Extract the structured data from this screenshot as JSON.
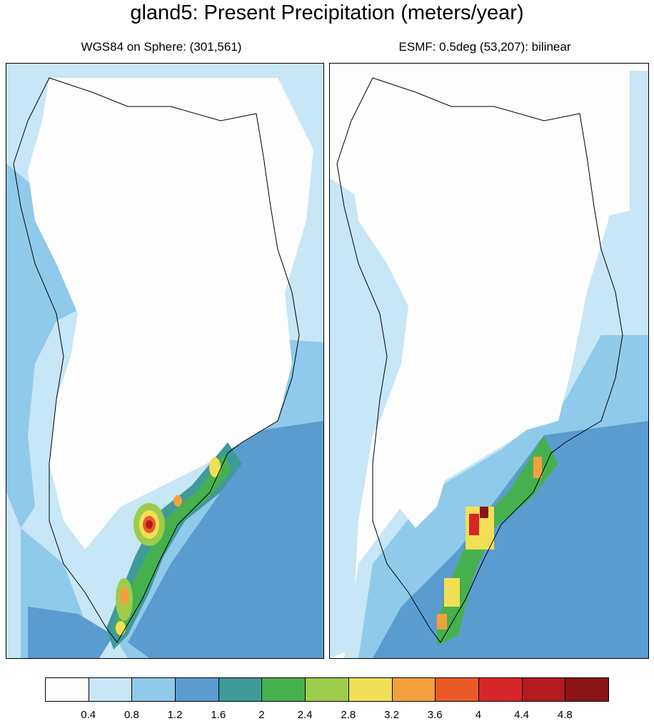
{
  "title": "gland5: Present Precipitation (meters/year)",
  "panels": [
    {
      "subtitle": "WGS84 on Sphere: (301,561)"
    },
    {
      "subtitle": "ESMF: 0.5deg (53,207): bilinear"
    }
  ],
  "colors": {
    "levels": [
      "#fdfdfd",
      "#c7e6f6",
      "#8fcaeb",
      "#5b9cd0",
      "#3f9a9a",
      "#46b04f",
      "#9dcc4b",
      "#f3df55",
      "#f3a03c",
      "#ea5a28",
      "#d7262a",
      "#b51a1e",
      "#8c1416"
    ]
  },
  "chart_data": {
    "type": "heatmap",
    "title": "gland5: Present Precipitation (meters/year)",
    "subtitles": [
      "WGS84 on Sphere: (301,561)",
      "ESMF: 0.5deg (53,207): bilinear"
    ],
    "colorbar": {
      "tick_labels": [
        "0.4",
        "0.8",
        "1.2",
        "1.6",
        "2",
        "2.4",
        "2.8",
        "3.2",
        "3.6",
        "4",
        "4.4",
        "4.8"
      ],
      "levels": [
        0.4,
        0.8,
        1.2,
        1.6,
        2.0,
        2.4,
        2.8,
        3.2,
        3.6,
        4.0,
        4.4,
        4.8
      ],
      "n_bins": 13
    }
  }
}
